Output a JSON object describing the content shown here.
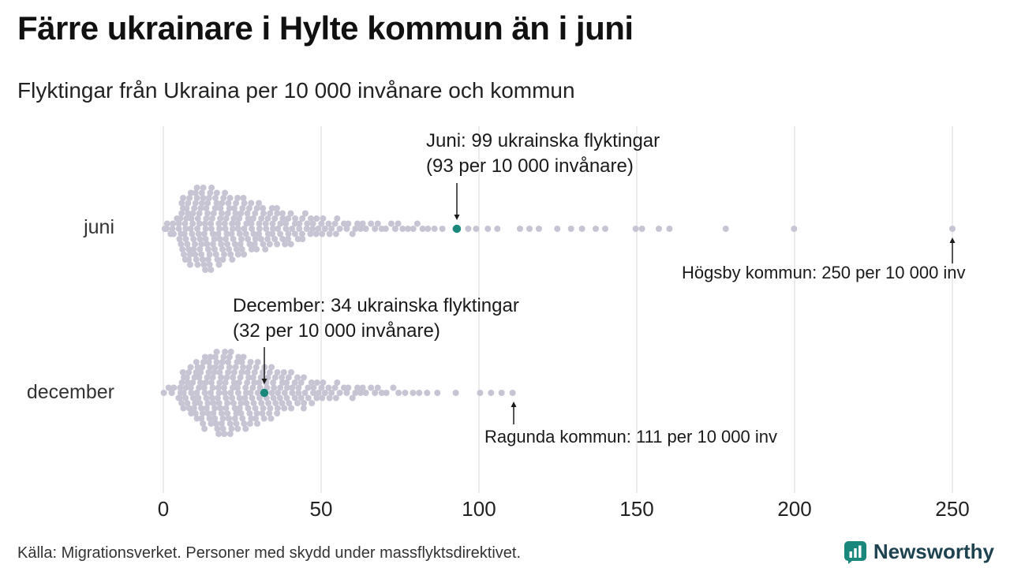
{
  "title": "Färre ukrainare i Hylte kommun än i juni",
  "subtitle": "Flyktingar från Ukraina per 10 000 invånare och kommun",
  "footer": {
    "source": "Källa: Migrationsverket. Personer med skydd under massflyktsdirektivet."
  },
  "logo": {
    "name": "Newsworthy",
    "icon": "bar-chart-bubble-icon",
    "icon_color": "#1a877c",
    "text_color": "#1d4250"
  },
  "chart_data": {
    "type": "scatter",
    "subtype": "beeswarm",
    "title": "Färre ukrainare i Hylte kommun än i juni",
    "subtitle": "Flyktingar från Ukraina per 10 000 invånare och kommun",
    "xlabel": "",
    "ylabel": "",
    "xlim": [
      0,
      250
    ],
    "xticks": [
      "0",
      "50",
      "100",
      "150",
      "200",
      "250"
    ],
    "xtick_values": [
      0,
      50,
      100,
      150,
      200,
      250
    ],
    "grid": "vertical",
    "legend": "none",
    "colors": {
      "dot": "#c7c5d3",
      "highlight": "#1a877c",
      "grid": "#dadada",
      "arrow": "#1a1a1a"
    },
    "rows": [
      {
        "label": "juni",
        "bins": [
          {
            "x0": 0,
            "x1": 5,
            "count": 9
          },
          {
            "x0": 5,
            "x1": 10,
            "count": 36
          },
          {
            "x0": 10,
            "x1": 15,
            "count": 40
          },
          {
            "x0": 15,
            "x1": 20,
            "count": 34
          },
          {
            "x0": 20,
            "x1": 25,
            "count": 29
          },
          {
            "x0": 25,
            "x1": 30,
            "count": 24
          },
          {
            "x0": 30,
            "x1": 35,
            "count": 20
          },
          {
            "x0": 35,
            "x1": 40,
            "count": 17
          },
          {
            "x0": 40,
            "x1": 45,
            "count": 13
          },
          {
            "x0": 45,
            "x1": 50,
            "count": 10
          },
          {
            "x0": 50,
            "x1": 55,
            "count": 8
          },
          {
            "x0": 55,
            "x1": 60,
            "count": 6
          },
          {
            "x0": 60,
            "x1": 65,
            "count": 5
          },
          {
            "x0": 65,
            "x1": 70,
            "count": 4
          },
          {
            "x0": 70,
            "x1": 75,
            "count": 4
          },
          {
            "x0": 75,
            "x1": 80,
            "count": 3
          },
          {
            "x0": 80,
            "x1": 85,
            "count": 3
          },
          {
            "x0": 85,
            "x1": 90,
            "count": 2
          },
          {
            "x0": 90,
            "x1": 95,
            "count": 1
          },
          {
            "x0": 95,
            "x1": 100,
            "count": 2
          }
        ],
        "outliers": [
          103,
          106,
          113,
          116,
          119,
          125,
          129,
          133,
          137,
          140,
          150,
          152,
          157,
          160,
          178,
          200,
          250
        ],
        "highlight": {
          "value": 93,
          "municipality": "Hylte",
          "refugees": 99,
          "per_10000": 93
        },
        "max_labeled": {
          "municipality": "Högsby kommun",
          "per_10000": 250
        }
      },
      {
        "label": "december",
        "bins": [
          {
            "x0": 0,
            "x1": 5,
            "count": 5
          },
          {
            "x0": 5,
            "x1": 10,
            "count": 24
          },
          {
            "x0": 10,
            "x1": 15,
            "count": 34
          },
          {
            "x0": 15,
            "x1": 20,
            "count": 40
          },
          {
            "x0": 20,
            "x1": 25,
            "count": 37
          },
          {
            "x0": 25,
            "x1": 30,
            "count": 31
          },
          {
            "x0": 30,
            "x1": 35,
            "count": 25
          },
          {
            "x0": 35,
            "x1": 40,
            "count": 20
          },
          {
            "x0": 40,
            "x1": 45,
            "count": 15
          },
          {
            "x0": 45,
            "x1": 50,
            "count": 11
          },
          {
            "x0": 50,
            "x1": 55,
            "count": 8
          },
          {
            "x0": 55,
            "x1": 60,
            "count": 6
          },
          {
            "x0": 60,
            "x1": 65,
            "count": 5
          },
          {
            "x0": 65,
            "x1": 70,
            "count": 4
          },
          {
            "x0": 70,
            "x1": 75,
            "count": 3
          },
          {
            "x0": 75,
            "x1": 80,
            "count": 2
          },
          {
            "x0": 80,
            "x1": 85,
            "count": 2
          }
        ],
        "outliers": [
          87,
          93,
          100,
          104,
          107,
          111
        ],
        "highlight": {
          "value": 32,
          "municipality": "Hylte",
          "refugees": 34,
          "per_10000": 32
        },
        "max_labeled": {
          "municipality": "Ragunda kommun",
          "per_10000": 111
        }
      }
    ],
    "annotations": [
      {
        "id": "juni-highlight",
        "lines": [
          "Juni: 99 ukrainska flyktingar",
          "(93 per 10 000 invånare)"
        ],
        "row": 0,
        "value": 93,
        "arrow": "down"
      },
      {
        "id": "hogsby-max",
        "lines": [
          "Högsby kommun: 250 per 10 000 inv"
        ],
        "row": 0,
        "value": 250,
        "arrow": "up"
      },
      {
        "id": "december-highlight",
        "lines": [
          "December: 34 ukrainska flyktingar",
          "(32 per 10 000 invånare)"
        ],
        "row": 1,
        "value": 32,
        "arrow": "down"
      },
      {
        "id": "ragunda-max",
        "lines": [
          "Ragunda kommun: 111 per 10 000 inv"
        ],
        "row": 1,
        "value": 111,
        "arrow": "up"
      }
    ]
  }
}
